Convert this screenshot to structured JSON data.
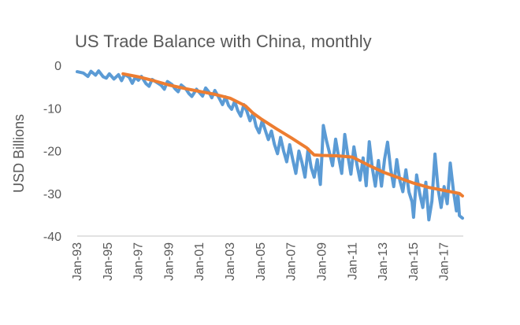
{
  "chart_data": {
    "type": "line",
    "title": "US Trade Balance with China, monthly",
    "ylabel": "USD Billions",
    "xlabel": "",
    "ylim": [
      -40,
      0
    ],
    "ytick_labels": [
      "0",
      "-10",
      "-20",
      "-30",
      "-40"
    ],
    "ytick_values": [
      0,
      -10,
      -20,
      -30,
      -40
    ],
    "xlim": [
      "Jan-93",
      "Dec-17"
    ],
    "xtick_labels": [
      "Jan-93",
      "Jan-95",
      "Jan-97",
      "Jan-99",
      "Jan-01",
      "Jan-03",
      "Jan-05",
      "Jan-07",
      "Jan-09",
      "Jan-11",
      "Jan-13",
      "Jan-15",
      "Jan-17"
    ],
    "xtick_year_values": [
      1993,
      1995,
      1997,
      1999,
      2001,
      2003,
      2005,
      2007,
      2009,
      2011,
      2013,
      2015,
      2017
    ],
    "grid": false,
    "legend": "none",
    "series": [
      {
        "color": "#5B9BD5",
        "points": [
          [
            1993.0,
            -1.5
          ],
          [
            1993.4,
            -1.8
          ],
          [
            1993.7,
            -2.6
          ],
          [
            1993.9,
            -1.4
          ],
          [
            1994.2,
            -2.3
          ],
          [
            1994.4,
            -1.3
          ],
          [
            1994.7,
            -2.7
          ],
          [
            1994.9,
            -3.0
          ],
          [
            1995.1,
            -2.0
          ],
          [
            1995.4,
            -3.2
          ],
          [
            1995.7,
            -2.2
          ],
          [
            1995.9,
            -3.6
          ],
          [
            1996.1,
            -2.1
          ],
          [
            1996.4,
            -2.8
          ],
          [
            1996.6,
            -4.2
          ],
          [
            1996.8,
            -2.8
          ],
          [
            1997.0,
            -3.5
          ],
          [
            1997.2,
            -2.6
          ],
          [
            1997.5,
            -4.3
          ],
          [
            1997.7,
            -4.9
          ],
          [
            1997.9,
            -3.3
          ],
          [
            1998.2,
            -4.0
          ],
          [
            1998.5,
            -4.7
          ],
          [
            1998.7,
            -5.6
          ],
          [
            1998.9,
            -3.8
          ],
          [
            1999.2,
            -4.5
          ],
          [
            1999.4,
            -5.5
          ],
          [
            1999.6,
            -6.2
          ],
          [
            1999.8,
            -4.6
          ],
          [
            2000.1,
            -5.5
          ],
          [
            2000.3,
            -6.6
          ],
          [
            2000.5,
            -7.3
          ],
          [
            2000.8,
            -5.6
          ],
          [
            2001.0,
            -6.4
          ],
          [
            2001.2,
            -7.2
          ],
          [
            2001.4,
            -5.3
          ],
          [
            2001.6,
            -6.2
          ],
          [
            2001.8,
            -7.6
          ],
          [
            2002.0,
            -5.9
          ],
          [
            2002.3,
            -7.8
          ],
          [
            2002.5,
            -9.2
          ],
          [
            2002.7,
            -7.4
          ],
          [
            2002.9,
            -9.4
          ],
          [
            2003.1,
            -10.3
          ],
          [
            2003.3,
            -8.4
          ],
          [
            2003.5,
            -10.6
          ],
          [
            2003.7,
            -11.9
          ],
          [
            2003.9,
            -9.2
          ],
          [
            2004.1,
            -10.8
          ],
          [
            2004.3,
            -13.0
          ],
          [
            2004.5,
            -11.2
          ],
          [
            2004.7,
            -14.3
          ],
          [
            2004.9,
            -15.8
          ],
          [
            2005.1,
            -13.0
          ],
          [
            2005.3,
            -15.2
          ],
          [
            2005.5,
            -17.4
          ],
          [
            2005.7,
            -15.4
          ],
          [
            2005.9,
            -18.5
          ],
          [
            2006.1,
            -20.7
          ],
          [
            2006.3,
            -16.9
          ],
          [
            2006.5,
            -20.1
          ],
          [
            2006.7,
            -22.6
          ],
          [
            2006.9,
            -18.6
          ],
          [
            2007.1,
            -22.1
          ],
          [
            2007.3,
            -25.3
          ],
          [
            2007.5,
            -20.1
          ],
          [
            2007.7,
            -22.8
          ],
          [
            2007.9,
            -26.2
          ],
          [
            2008.1,
            -19.6
          ],
          [
            2008.3,
            -23.9
          ],
          [
            2008.5,
            -26.2
          ],
          [
            2008.7,
            -22.1
          ],
          [
            2008.9,
            -27.9
          ],
          [
            2009.0,
            -21.5
          ],
          [
            2009.1,
            -14.1
          ],
          [
            2009.3,
            -17.6
          ],
          [
            2009.5,
            -20.5
          ],
          [
            2009.7,
            -23.5
          ],
          [
            2009.9,
            -17.3
          ],
          [
            2010.1,
            -21.5
          ],
          [
            2010.3,
            -25.3
          ],
          [
            2010.5,
            -16.2
          ],
          [
            2010.7,
            -21.1
          ],
          [
            2010.9,
            -25.5
          ],
          [
            2011.1,
            -19.1
          ],
          [
            2011.3,
            -23.3
          ],
          [
            2011.5,
            -26.9
          ],
          [
            2011.7,
            -21.7
          ],
          [
            2011.9,
            -28.2
          ],
          [
            2012.1,
            -17.9
          ],
          [
            2012.3,
            -24.0
          ],
          [
            2012.5,
            -28.3
          ],
          [
            2012.7,
            -22.3
          ],
          [
            2012.9,
            -28.3
          ],
          [
            2013.1,
            -22.0
          ],
          [
            2013.3,
            -18.0
          ],
          [
            2013.5,
            -24.2
          ],
          [
            2013.7,
            -28.4
          ],
          [
            2013.9,
            -22.1
          ],
          [
            2014.1,
            -27.0
          ],
          [
            2014.3,
            -29.6
          ],
          [
            2014.5,
            -24.5
          ],
          [
            2014.7,
            -29.7
          ],
          [
            2014.9,
            -32.0
          ],
          [
            2015.0,
            -35.6
          ],
          [
            2015.2,
            -25.7
          ],
          [
            2015.4,
            -30.0
          ],
          [
            2015.6,
            -33.3
          ],
          [
            2015.8,
            -27.4
          ],
          [
            2016.0,
            -36.2
          ],
          [
            2016.2,
            -31.8
          ],
          [
            2016.4,
            -20.8
          ],
          [
            2016.6,
            -28.9
          ],
          [
            2016.8,
            -33.3
          ],
          [
            2017.0,
            -28.4
          ],
          [
            2017.2,
            -32.4
          ],
          [
            2017.4,
            -22.9
          ],
          [
            2017.6,
            -29.2
          ],
          [
            2017.8,
            -34.1
          ],
          [
            2017.9,
            -30.2
          ],
          [
            2018.0,
            -35.2
          ],
          [
            2018.2,
            -35.8
          ]
        ]
      },
      {
        "color": "#ED7D31",
        "points": [
          [
            1996.0,
            -2.0
          ],
          [
            1997.0,
            -2.7
          ],
          [
            1998.0,
            -3.6
          ],
          [
            1999.0,
            -4.6
          ],
          [
            2000.0,
            -5.4
          ],
          [
            2001.0,
            -6.1
          ],
          [
            2002.0,
            -6.8
          ],
          [
            2003.0,
            -7.7
          ],
          [
            2004.0,
            -9.5
          ],
          [
            2004.5,
            -11.2
          ],
          [
            2005.0,
            -12.5
          ],
          [
            2006.0,
            -14.8
          ],
          [
            2007.0,
            -17.0
          ],
          [
            2008.0,
            -19.3
          ],
          [
            2008.5,
            -21.0
          ],
          [
            2009.0,
            -21.1
          ],
          [
            2010.0,
            -21.2
          ],
          [
            2011.0,
            -21.5
          ],
          [
            2012.0,
            -23.3
          ],
          [
            2013.0,
            -25.0
          ],
          [
            2014.0,
            -26.3
          ],
          [
            2015.0,
            -27.6
          ],
          [
            2016.0,
            -28.6
          ],
          [
            2017.0,
            -29.3
          ],
          [
            2018.0,
            -30.0
          ],
          [
            2018.2,
            -30.6
          ]
        ]
      }
    ]
  }
}
